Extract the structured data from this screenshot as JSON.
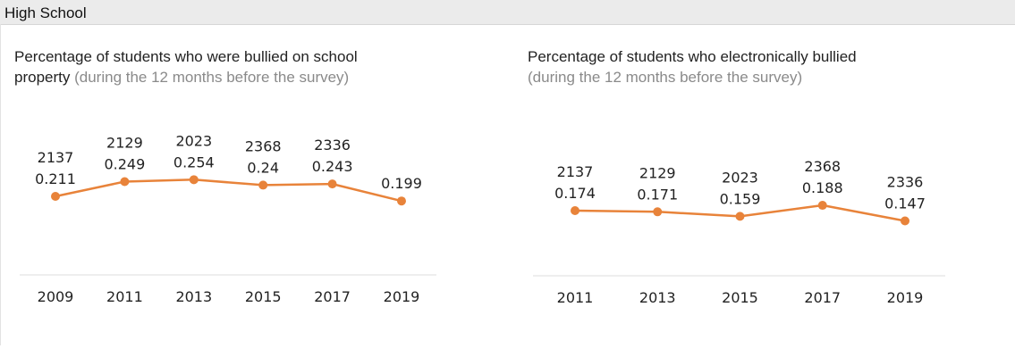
{
  "header": {
    "title": "High School"
  },
  "chart_data": [
    {
      "type": "line",
      "title": "Percentage of students who were bullied on school property",
      "subtitle": "(during the 12 months before the survey)",
      "x": [
        "2009",
        "2011",
        "2013",
        "2015",
        "2017",
        "2019"
      ],
      "series": [
        {
          "values": [
            0.211,
            0.249,
            0.254,
            0.24,
            0.243,
            0.199
          ],
          "counts": [
            "2137",
            "2129",
            "2023",
            "2368",
            "2336",
            ""
          ],
          "color": "#e8833a"
        }
      ],
      "grid": false,
      "legend": "none"
    },
    {
      "type": "line",
      "title": "Percentage of students who electronically bullied",
      "subtitle": "(during the 12 months before the survey)",
      "x": [
        "2011",
        "2013",
        "2015",
        "2017",
        "2019"
      ],
      "series": [
        {
          "values": [
            0.174,
            0.171,
            0.159,
            0.188,
            0.147
          ],
          "counts": [
            "2137",
            "2129",
            "2023",
            "2368",
            "2336"
          ],
          "color": "#e8833a"
        }
      ],
      "grid": false,
      "legend": "none"
    }
  ]
}
